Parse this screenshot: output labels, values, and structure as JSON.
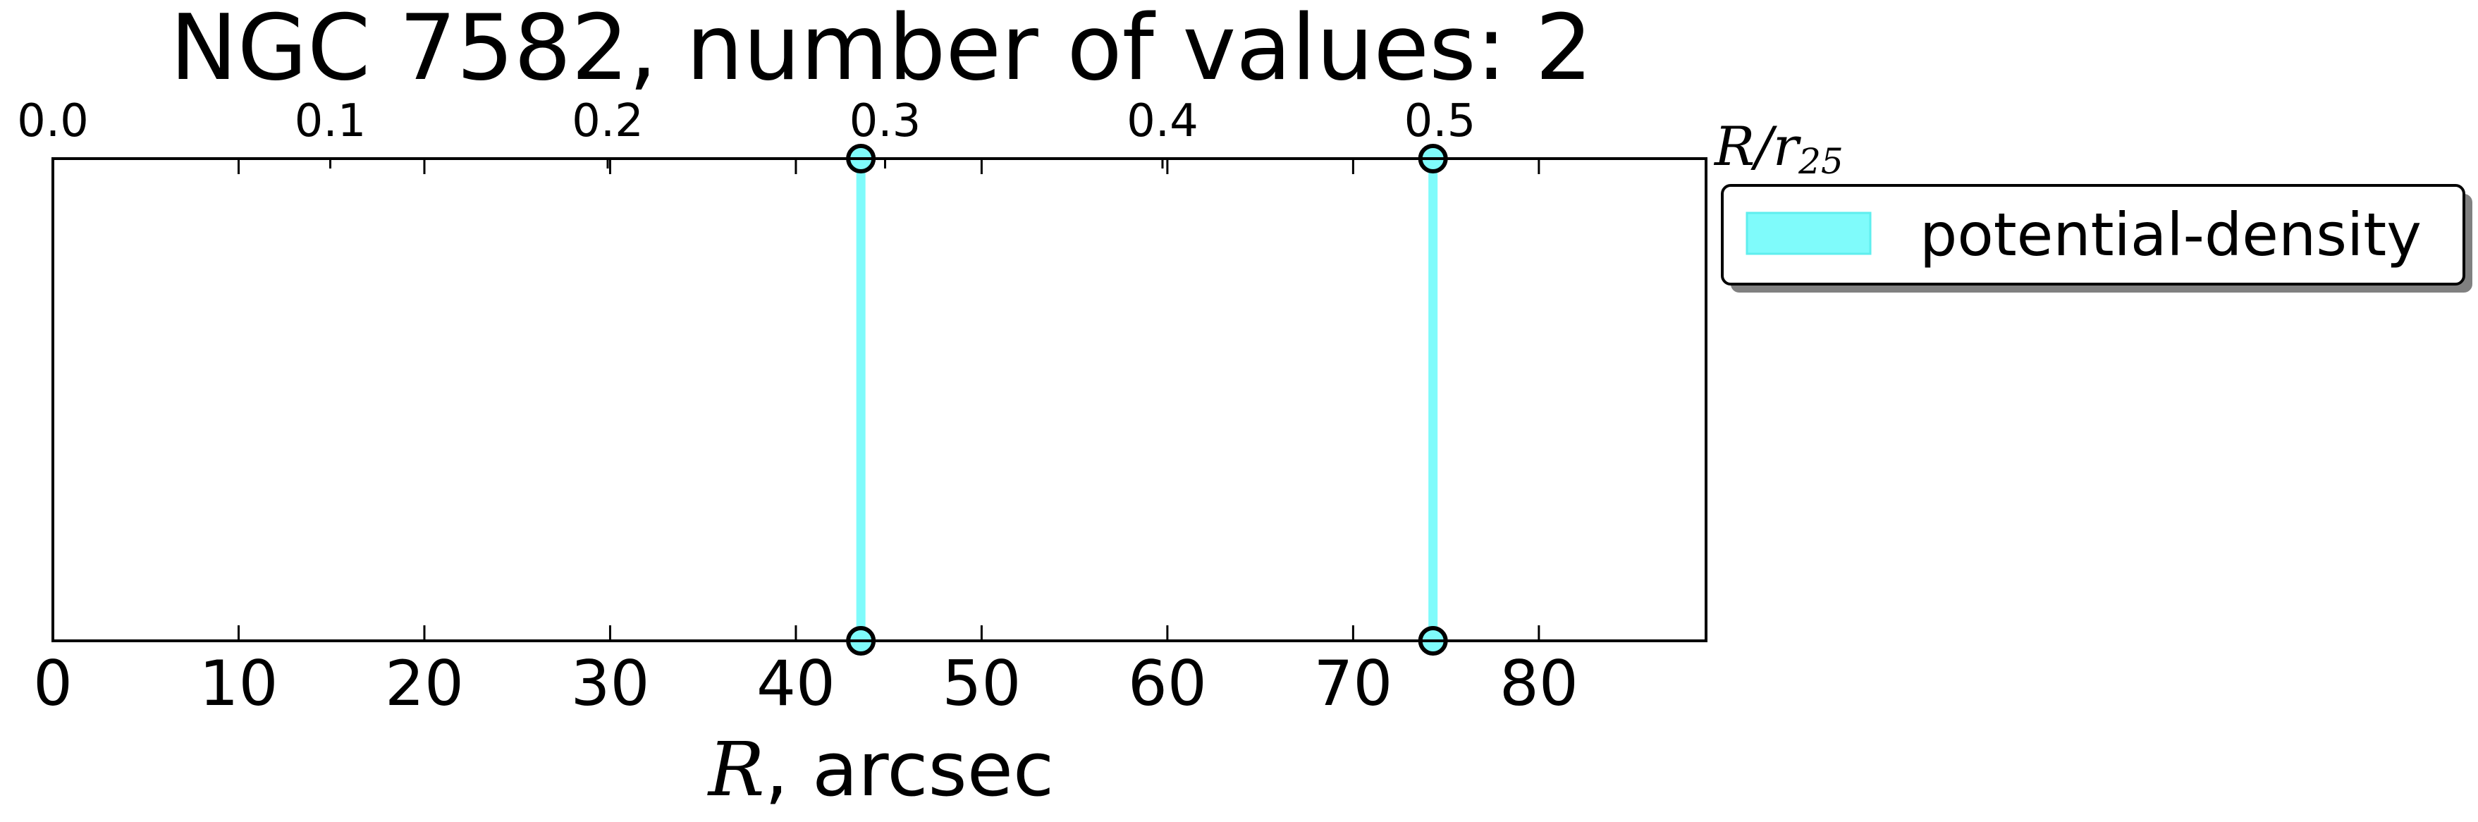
{
  "chart_data": {
    "type": "scatter",
    "title": "NGC 7582, number of values: 2",
    "xlabel": {
      "symbol": "R",
      "suffix": ", arcsec"
    },
    "x_secondary_label": {
      "symbol": "R/r",
      "subscript": "25"
    },
    "xlim": [
      0,
      89
    ],
    "x_ticks": [
      0,
      10,
      20,
      30,
      40,
      50,
      60,
      70,
      80
    ],
    "x_secondary_scale": 0.006696,
    "x_secondary_ticks": [
      "0.0",
      "0.1",
      "0.2",
      "0.3",
      "0.4",
      "0.5"
    ],
    "grid": false,
    "legend": {
      "placement": "outside-top-right"
    },
    "series": [
      {
        "name": "potential-density",
        "color": "#7ffbfb",
        "x": [
          43.5,
          74.3
        ]
      }
    ]
  }
}
